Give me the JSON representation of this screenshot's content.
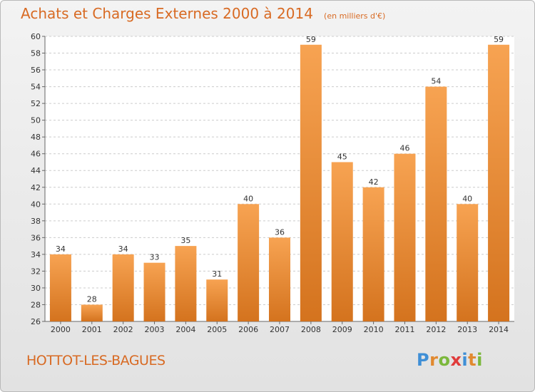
{
  "chart_data": {
    "type": "bar",
    "title": "Achats et Charges Externes 2000 à 2014",
    "unit_note": "(en milliers d'€)",
    "categories": [
      "2000",
      "2001",
      "2002",
      "2003",
      "2004",
      "2005",
      "2006",
      "2007",
      "2008",
      "2009",
      "2010",
      "2011",
      "2012",
      "2013",
      "2014"
    ],
    "values": [
      34,
      28,
      34,
      33,
      35,
      31,
      40,
      36,
      59,
      45,
      42,
      46,
      54,
      40,
      59
    ],
    "ylim": [
      26,
      60
    ],
    "ytick_step": 2,
    "grid": true,
    "bar_color_top": "#f7a352",
    "bar_color_bottom": "#d4731e"
  },
  "location": "HOTTOT-LES-BAGUES",
  "brand": {
    "letters": [
      "P",
      "r",
      "o",
      "x",
      "i",
      "t",
      "i"
    ],
    "colors": [
      "#3f8fd6",
      "#e1892f",
      "#7bb83c",
      "#e03b3b",
      "#3f8fd6",
      "#e1892f",
      "#7bb83c"
    ]
  }
}
